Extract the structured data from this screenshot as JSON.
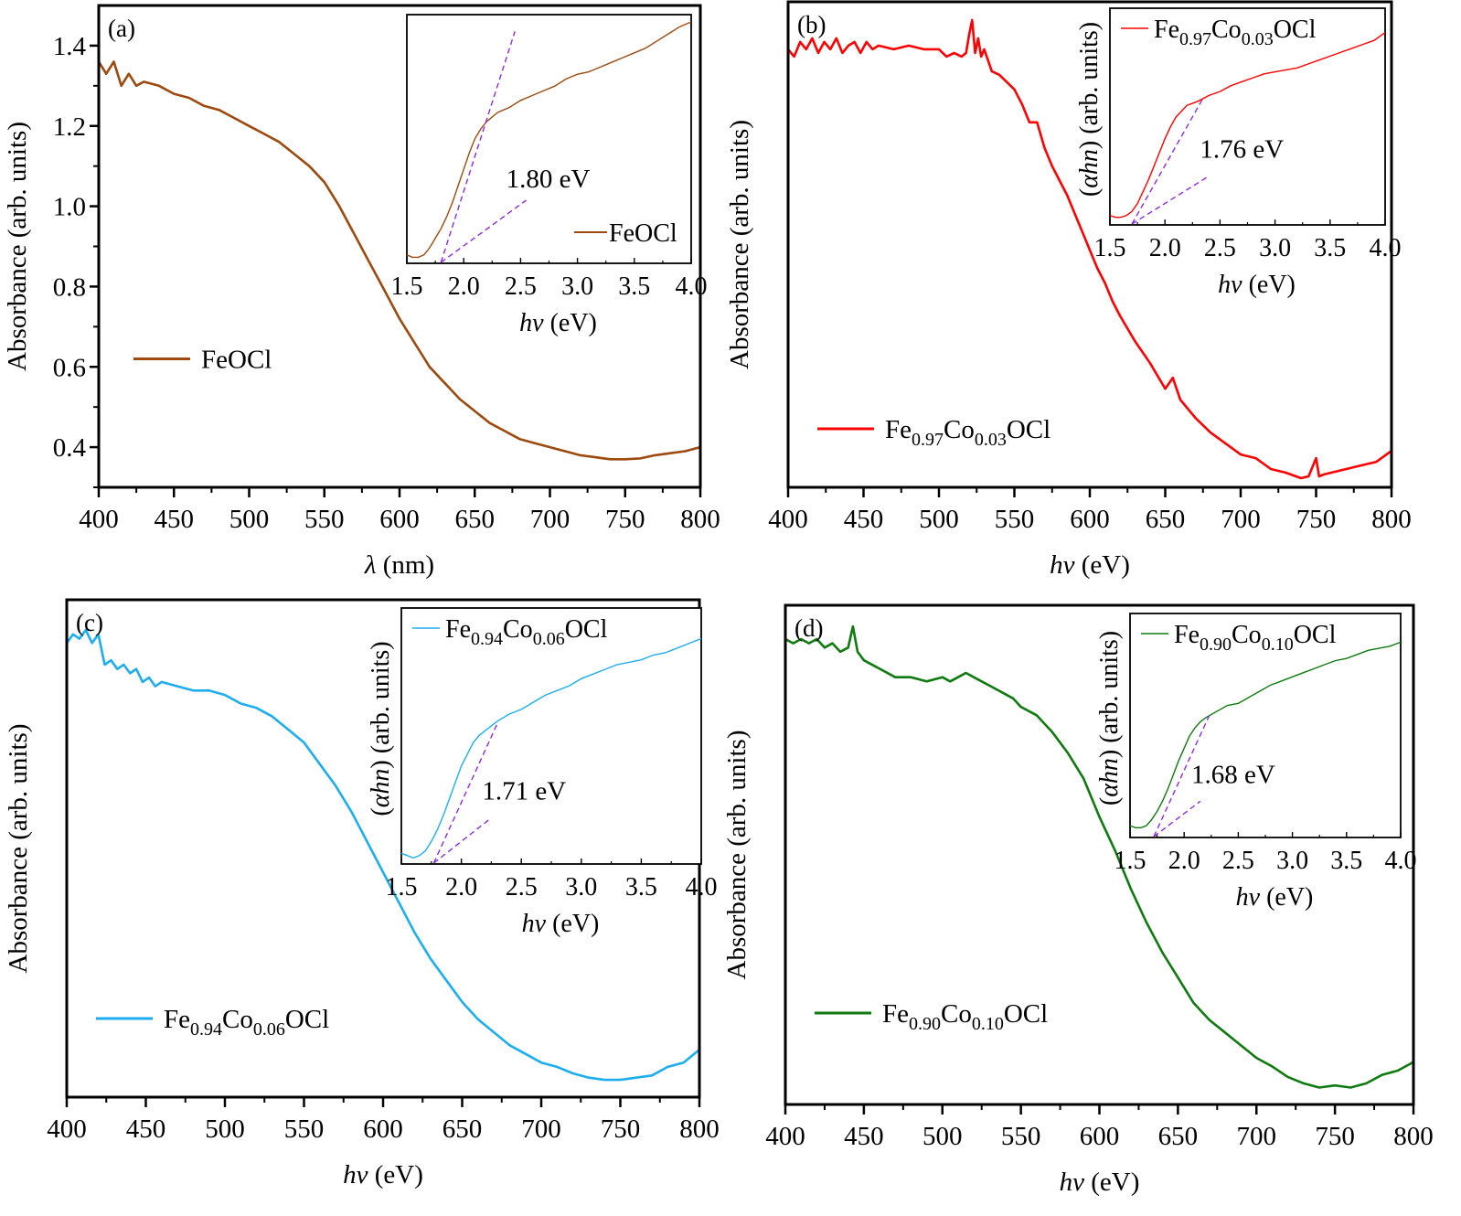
{
  "figure": {
    "description": "UV-Vis absorbance spectra with Tauc-plot insets for FeOCl and Co-doped FeOCl"
  },
  "chart_data": [
    {
      "panel": "(a)",
      "type": "line",
      "title": "",
      "xlabel": "λ (nm)",
      "ylabel": "Absorbance (arb. units)",
      "xlim": [
        400,
        800
      ],
      "ylim": [
        0.3,
        1.5
      ],
      "xticks": [
        400,
        450,
        500,
        550,
        600,
        650,
        700,
        750,
        800
      ],
      "yticks": [
        0.4,
        0.6,
        0.8,
        1.0,
        1.2,
        1.4
      ],
      "ytick_labels": [
        "0.4",
        "0.6",
        "0.8",
        "1.0",
        "1.2",
        "1.4"
      ],
      "show_yticklabels": true,
      "color": "#9C4A0F",
      "legend": {
        "label": "FeOCl",
        "base": "FeOCl",
        "sub1": "",
        "mid": "",
        "sub2": "",
        "tail": "",
        "placement": "left"
      },
      "series": [
        {
          "name": "FeOCl",
          "x": [
            400,
            405,
            410,
            415,
            420,
            425,
            430,
            440,
            450,
            460,
            470,
            480,
            490,
            500,
            510,
            520,
            530,
            540,
            550,
            560,
            570,
            580,
            590,
            600,
            610,
            620,
            630,
            640,
            650,
            660,
            670,
            680,
            690,
            700,
            710,
            720,
            730,
            740,
            750,
            760,
            770,
            780,
            790,
            800
          ],
          "y": [
            1.36,
            1.33,
            1.36,
            1.3,
            1.33,
            1.3,
            1.31,
            1.3,
            1.28,
            1.27,
            1.25,
            1.24,
            1.22,
            1.2,
            1.18,
            1.16,
            1.13,
            1.1,
            1.06,
            1.0,
            0.93,
            0.86,
            0.79,
            0.72,
            0.66,
            0.6,
            0.56,
            0.52,
            0.49,
            0.46,
            0.44,
            0.42,
            0.41,
            0.4,
            0.39,
            0.38,
            0.375,
            0.37,
            0.37,
            0.372,
            0.38,
            0.385,
            0.39,
            0.4
          ]
        }
      ],
      "inset": {
        "type": "line",
        "xlabel": "hv (eV)",
        "ylabel": "",
        "xlim": [
          1.5,
          4.0
        ],
        "ylim": [
          0,
          1
        ],
        "xticks": [
          1.5,
          2.0,
          2.5,
          3.0,
          3.5,
          4.0
        ],
        "xtick_labels": [
          "1.5",
          "2.0",
          "2.5",
          "3.0",
          "3.5",
          "4.0"
        ],
        "legend": {
          "label": "FeOCl",
          "base": "FeOCl",
          "sub1": "",
          "mid": "",
          "sub2": "",
          "tail": "",
          "placement": "bottom-right"
        },
        "band_gap_label": "1.80 eV",
        "band_gap_eV": 1.8,
        "series_x": [
          1.5,
          1.55,
          1.6,
          1.65,
          1.7,
          1.75,
          1.8,
          1.85,
          1.9,
          1.95,
          2.0,
          2.05,
          2.1,
          2.15,
          2.2,
          2.3,
          2.4,
          2.5,
          2.6,
          2.7,
          2.8,
          2.9,
          3.0,
          3.1,
          3.2,
          3.3,
          3.4,
          3.5,
          3.6,
          3.7,
          3.8,
          3.9,
          4.0
        ],
        "series_y": [
          0.02,
          0.01,
          0.01,
          0.02,
          0.05,
          0.09,
          0.13,
          0.18,
          0.24,
          0.31,
          0.38,
          0.45,
          0.51,
          0.55,
          0.58,
          0.62,
          0.64,
          0.67,
          0.69,
          0.71,
          0.73,
          0.76,
          0.78,
          0.79,
          0.81,
          0.83,
          0.85,
          0.87,
          0.89,
          0.92,
          0.95,
          0.98,
          1.0
        ],
        "fit_steep": [
          [
            1.8,
            0.0
          ],
          [
            2.45,
            0.96
          ]
        ],
        "fit_base": [
          [
            1.8,
            0.0
          ],
          [
            2.55,
            0.25
          ]
        ]
      }
    },
    {
      "panel": "(b)",
      "type": "line",
      "title": "",
      "xlabel": "hv (eV)",
      "ylabel": "Absorbance (arb. units)",
      "xlim": [
        400,
        800
      ],
      "ylim": [
        0.22,
        1.55
      ],
      "xticks": [
        400,
        450,
        500,
        550,
        600,
        650,
        700,
        750,
        800
      ],
      "show_yticklabels": false,
      "color": "#FF0000",
      "legend": {
        "label": "Fe0.97Co0.03OCl",
        "base": "Fe",
        "sub1": "0.97",
        "mid": "Co",
        "sub2": "0.03",
        "tail": "OCl",
        "placement": "left"
      },
      "series": [
        {
          "name": "Fe0.97Co0.03OCl",
          "x": [
            400,
            404,
            408,
            412,
            416,
            420,
            424,
            428,
            432,
            436,
            440,
            444,
            448,
            452,
            456,
            460,
            470,
            480,
            490,
            500,
            505,
            510,
            515,
            518,
            520,
            522,
            524,
            526,
            528,
            530,
            535,
            540,
            545,
            550,
            555,
            560,
            565,
            570,
            575,
            580,
            585,
            590,
            595,
            600,
            605,
            610,
            615,
            620,
            630,
            640,
            650,
            655,
            660,
            670,
            680,
            690,
            700,
            710,
            720,
            730,
            740,
            745,
            750,
            752,
            755,
            760,
            770,
            780,
            790,
            800
          ],
          "y": [
            1.42,
            1.4,
            1.44,
            1.42,
            1.45,
            1.41,
            1.44,
            1.42,
            1.45,
            1.41,
            1.43,
            1.44,
            1.41,
            1.44,
            1.42,
            1.43,
            1.42,
            1.43,
            1.42,
            1.42,
            1.4,
            1.41,
            1.4,
            1.41,
            1.46,
            1.5,
            1.41,
            1.45,
            1.4,
            1.42,
            1.36,
            1.35,
            1.33,
            1.31,
            1.27,
            1.22,
            1.22,
            1.15,
            1.1,
            1.06,
            1.02,
            0.97,
            0.92,
            0.87,
            0.82,
            0.78,
            0.73,
            0.69,
            0.62,
            0.56,
            0.49,
            0.52,
            0.46,
            0.41,
            0.37,
            0.34,
            0.31,
            0.3,
            0.27,
            0.26,
            0.245,
            0.25,
            0.3,
            0.25,
            0.255,
            0.26,
            0.27,
            0.28,
            0.29,
            0.32
          ]
        }
      ],
      "inset": {
        "type": "line",
        "xlabel": "hv (eV)",
        "ylabel": "(αhn) (arb. units)",
        "xlim": [
          1.5,
          4.0
        ],
        "ylim": [
          0,
          1
        ],
        "xticks": [
          1.5,
          2.0,
          2.5,
          3.0,
          3.5,
          4.0
        ],
        "xtick_labels": [
          "1.5",
          "2.0",
          "2.5",
          "3.0",
          "3.5",
          "4.0"
        ],
        "legend": {
          "label": "Fe0.97Co0.03OCl",
          "base": "Fe",
          "sub1": "0.97",
          "mid": "Co",
          "sub2": "0.03",
          "tail": "OCl",
          "placement": "top-left"
        },
        "band_gap_label": "1.76 eV",
        "band_gap_eV": 1.76,
        "series_x": [
          1.5,
          1.55,
          1.6,
          1.65,
          1.7,
          1.75,
          1.8,
          1.85,
          1.9,
          1.95,
          2.0,
          2.05,
          2.1,
          2.15,
          2.2,
          2.3,
          2.4,
          2.5,
          2.6,
          2.7,
          2.8,
          2.9,
          3.0,
          3.1,
          3.2,
          3.3,
          3.4,
          3.5,
          3.6,
          3.7,
          3.8,
          3.9,
          4.0
        ],
        "series_y": [
          0.03,
          0.02,
          0.02,
          0.03,
          0.05,
          0.09,
          0.15,
          0.21,
          0.28,
          0.35,
          0.42,
          0.48,
          0.53,
          0.56,
          0.59,
          0.61,
          0.64,
          0.66,
          0.69,
          0.71,
          0.73,
          0.75,
          0.76,
          0.77,
          0.78,
          0.8,
          0.82,
          0.84,
          0.86,
          0.88,
          0.9,
          0.92,
          0.96
        ],
        "fit_steep": [
          [
            1.7,
            0.0
          ],
          [
            2.35,
            0.63
          ]
        ],
        "fit_base": [
          [
            1.7,
            0.0
          ],
          [
            2.4,
            0.23
          ]
        ]
      }
    },
    {
      "panel": "(c)",
      "type": "line",
      "title": "",
      "xlabel": "hv (eV)",
      "ylabel": "Absorbance (arb. units)",
      "xlim": [
        400,
        800
      ],
      "ylim": [
        0.2,
        1.35
      ],
      "xticks": [
        400,
        450,
        500,
        550,
        600,
        650,
        700,
        750,
        800
      ],
      "show_yticklabels": false,
      "color": "#1EAEEF",
      "legend": {
        "label": "Fe0.94Co0.06OCl",
        "base": "Fe",
        "sub1": "0.94",
        "mid": "Co",
        "sub2": "0.06",
        "tail": "OCl",
        "placement": "left"
      },
      "series": [
        {
          "name": "Fe0.94Co0.06OCl",
          "x": [
            400,
            404,
            408,
            412,
            416,
            420,
            424,
            428,
            432,
            436,
            440,
            444,
            448,
            452,
            456,
            460,
            470,
            480,
            490,
            500,
            510,
            520,
            530,
            540,
            550,
            560,
            570,
            580,
            590,
            600,
            610,
            620,
            630,
            640,
            650,
            660,
            670,
            680,
            690,
            700,
            710,
            720,
            730,
            740,
            750,
            760,
            770,
            780,
            790,
            800
          ],
          "y": [
            1.25,
            1.27,
            1.26,
            1.28,
            1.25,
            1.27,
            1.2,
            1.21,
            1.19,
            1.2,
            1.18,
            1.19,
            1.16,
            1.17,
            1.15,
            1.16,
            1.15,
            1.14,
            1.14,
            1.13,
            1.11,
            1.1,
            1.08,
            1.05,
            1.02,
            0.97,
            0.92,
            0.86,
            0.79,
            0.72,
            0.65,
            0.58,
            0.52,
            0.47,
            0.42,
            0.38,
            0.35,
            0.32,
            0.3,
            0.28,
            0.27,
            0.255,
            0.245,
            0.24,
            0.24,
            0.245,
            0.25,
            0.27,
            0.28,
            0.31
          ]
        }
      ],
      "inset": {
        "type": "line",
        "xlabel": "hv (eV)",
        "ylabel": "(αhn) (arb. units)",
        "xlim": [
          1.5,
          4.0
        ],
        "ylim": [
          0,
          1
        ],
        "xticks": [
          1.5,
          2.0,
          2.5,
          3.0,
          3.5,
          4.0
        ],
        "xtick_labels": [
          "1.5",
          "2.0",
          "2.5",
          "3.0",
          "3.5",
          "4.0"
        ],
        "legend": {
          "label": "Fe0.94Co0.06OCl",
          "base": "Fe",
          "sub1": "0.94",
          "mid": "Co",
          "sub2": "0.06",
          "tail": "OCl",
          "placement": "top-left"
        },
        "band_gap_label": "1.71 eV",
        "band_gap_eV": 1.71,
        "series_x": [
          1.5,
          1.55,
          1.6,
          1.65,
          1.7,
          1.75,
          1.8,
          1.85,
          1.9,
          1.95,
          2.0,
          2.05,
          2.1,
          2.15,
          2.2,
          2.3,
          2.4,
          2.5,
          2.6,
          2.7,
          2.8,
          2.9,
          3.0,
          3.1,
          3.2,
          3.3,
          3.4,
          3.5,
          3.6,
          3.7,
          3.8,
          3.9,
          4.0
        ],
        "series_y": [
          0.03,
          0.02,
          0.01,
          0.02,
          0.04,
          0.08,
          0.13,
          0.19,
          0.26,
          0.33,
          0.4,
          0.45,
          0.5,
          0.53,
          0.55,
          0.59,
          0.62,
          0.64,
          0.67,
          0.7,
          0.72,
          0.74,
          0.77,
          0.79,
          0.81,
          0.83,
          0.84,
          0.85,
          0.87,
          0.88,
          0.9,
          0.92,
          0.94
        ],
        "fit_steep": [
          [
            1.77,
            0.0
          ],
          [
            2.3,
            0.58
          ]
        ],
        "fit_base": [
          [
            1.77,
            0.0
          ],
          [
            2.25,
            0.18
          ]
        ]
      }
    },
    {
      "panel": "(d)",
      "type": "line",
      "title": "",
      "xlabel": "hv (eV)",
      "ylabel": "Absorbance (arb. units)",
      "xlim": [
        400,
        800
      ],
      "ylim": [
        0.2,
        1.38
      ],
      "xticks": [
        400,
        450,
        500,
        550,
        600,
        650,
        700,
        750,
        800
      ],
      "show_yticklabels": false,
      "color": "#0F7A0F",
      "legend": {
        "label": "Fe0.90Co0.10OCl",
        "base": "Fe",
        "sub1": "0.90",
        "mid": "Co",
        "sub2": "0.10",
        "tail": "OCl",
        "placement": "left"
      },
      "series": [
        {
          "name": "Fe0.90Co0.10OCl",
          "x": [
            400,
            405,
            410,
            415,
            420,
            425,
            430,
            435,
            440,
            443,
            446,
            450,
            455,
            460,
            470,
            480,
            490,
            500,
            505,
            510,
            515,
            520,
            525,
            530,
            540,
            545,
            550,
            560,
            570,
            580,
            590,
            600,
            610,
            620,
            630,
            640,
            650,
            660,
            670,
            680,
            690,
            700,
            710,
            720,
            730,
            740,
            750,
            760,
            770,
            780,
            790,
            800
          ],
          "y": [
            1.3,
            1.29,
            1.3,
            1.29,
            1.3,
            1.28,
            1.29,
            1.27,
            1.28,
            1.33,
            1.27,
            1.25,
            1.24,
            1.23,
            1.21,
            1.21,
            1.2,
            1.21,
            1.2,
            1.21,
            1.22,
            1.21,
            1.2,
            1.19,
            1.17,
            1.16,
            1.14,
            1.12,
            1.08,
            1.03,
            0.97,
            0.88,
            0.8,
            0.71,
            0.63,
            0.56,
            0.5,
            0.44,
            0.4,
            0.37,
            0.34,
            0.31,
            0.29,
            0.265,
            0.25,
            0.24,
            0.245,
            0.24,
            0.25,
            0.27,
            0.28,
            0.3
          ]
        }
      ],
      "inset": {
        "type": "line",
        "xlabel": "hv (eV)",
        "ylabel": "(αhn) (arb. units)",
        "xlim": [
          1.5,
          4.0
        ],
        "ylim": [
          0,
          1
        ],
        "xticks": [
          1.5,
          2.0,
          2.5,
          3.0,
          3.5,
          4.0
        ],
        "xtick_labels": [
          "1.5",
          "2.0",
          "2.5",
          "3.0",
          "3.5",
          "4.0"
        ],
        "legend": {
          "label": "Fe0.90Co0.10OCl",
          "base": "Fe",
          "sub1": "0.90",
          "mid": "Co",
          "sub2": "0.10",
          "tail": "OCl",
          "placement": "top-left"
        },
        "band_gap_label": "1.68 eV",
        "band_gap_eV": 1.68,
        "series_x": [
          1.5,
          1.55,
          1.6,
          1.65,
          1.7,
          1.75,
          1.8,
          1.85,
          1.9,
          1.95,
          2.0,
          2.05,
          2.1,
          2.15,
          2.2,
          2.3,
          2.4,
          2.5,
          2.6,
          2.7,
          2.8,
          2.9,
          3.0,
          3.1,
          3.2,
          3.3,
          3.4,
          3.5,
          3.6,
          3.7,
          3.8,
          3.9,
          4.0
        ],
        "series_y": [
          0.04,
          0.03,
          0.03,
          0.04,
          0.07,
          0.11,
          0.16,
          0.22,
          0.29,
          0.36,
          0.42,
          0.48,
          0.52,
          0.55,
          0.57,
          0.6,
          0.63,
          0.64,
          0.67,
          0.7,
          0.73,
          0.75,
          0.77,
          0.79,
          0.81,
          0.83,
          0.85,
          0.86,
          0.88,
          0.9,
          0.91,
          0.92,
          0.94
        ],
        "fit_steep": [
          [
            1.72,
            0.0
          ],
          [
            2.24,
            0.59
          ]
        ],
        "fit_base": [
          [
            1.72,
            0.0
          ],
          [
            2.15,
            0.16
          ]
        ]
      }
    }
  ]
}
